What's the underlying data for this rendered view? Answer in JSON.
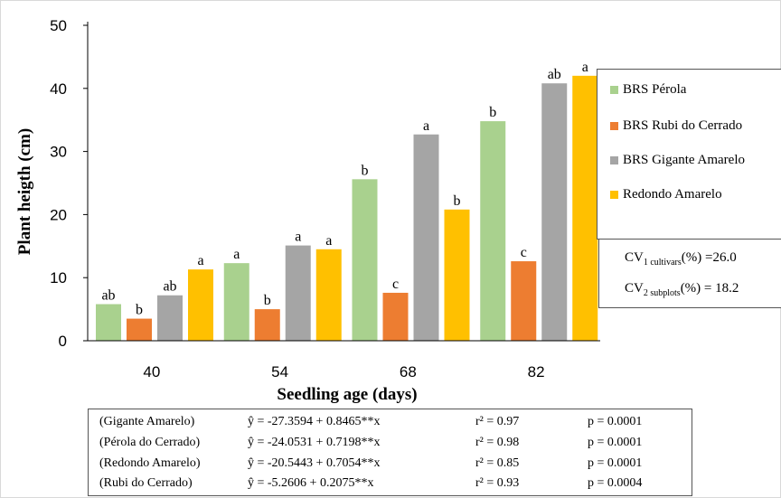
{
  "chart_data": {
    "type": "bar",
    "categories": [
      "40",
      "54",
      "68",
      "82"
    ],
    "xlabel": "Seedling age (days)",
    "ylabel": "Plant heigth (cm)",
    "ylim": [
      0,
      50
    ],
    "yticks": [
      "0",
      "10",
      "20",
      "30",
      "40",
      "50"
    ],
    "legend_position": "right",
    "series": [
      {
        "name": "BRS Pérola",
        "color": "#a9d18e",
        "values": [
          5.8,
          12.3,
          25.6,
          34.8
        ],
        "labels": [
          "ab",
          "a",
          "b",
          "b"
        ]
      },
      {
        "name": "BRS Rubi do Cerrado",
        "color": "#ed7d31",
        "values": [
          3.5,
          5.0,
          7.6,
          12.6
        ],
        "labels": [
          "b",
          "b",
          "c",
          "c"
        ]
      },
      {
        "name": "BRS Gigante Amarelo",
        "color": "#a5a5a5",
        "values": [
          7.2,
          15.1,
          32.7,
          40.8
        ],
        "labels": [
          "ab",
          "a",
          "a",
          "ab"
        ]
      },
      {
        "name": "Redondo Amarelo",
        "color": "#ffc000",
        "values": [
          11.3,
          14.5,
          20.8,
          42.0
        ],
        "labels": [
          "a",
          "a",
          "b",
          "a"
        ]
      }
    ]
  },
  "cv": {
    "cv1_main": "CV",
    "cv1_sub1": "1",
    "cv1_sub2": " cultivars",
    "cv1_rest": "(%) =26.0",
    "cv2_main": "CV",
    "cv2_sub1": "2",
    "cv2_sub2": " subplots",
    "cv2_rest": "(%) = 18.2"
  },
  "regressions": [
    {
      "name": "(Gigante Amarelo)",
      "equation": "ŷ = -27.3594  + 0.8465**x",
      "r2": "r² = 0.97",
      "p": "p = 0.0001"
    },
    {
      "name": "(Pérola do Cerrado)",
      "equation": "ŷ = -24.0531  + 0.7198**x",
      "r2": "r² = 0.98",
      "p": "p = 0.0001"
    },
    {
      "name": "(Redondo Amarelo)",
      "equation": "ŷ = -20.5443  + 0.7054**x",
      "r2": "r² = 0.85",
      "p": "p = 0.0001"
    },
    {
      "name": "(Rubi do Cerrado)",
      "equation": "ŷ = -5.2606  + 0.2075**x",
      "r2": "r² = 0.93",
      "p": "p = 0.0004"
    }
  ]
}
